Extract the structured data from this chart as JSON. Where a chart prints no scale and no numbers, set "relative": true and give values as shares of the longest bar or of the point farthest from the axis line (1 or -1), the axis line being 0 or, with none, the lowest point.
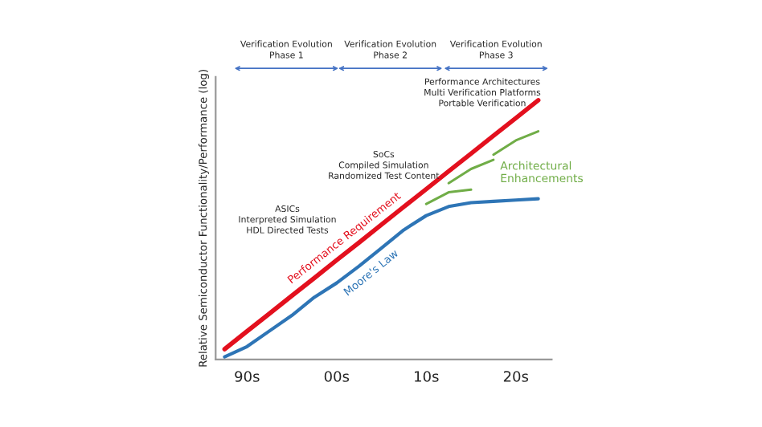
{
  "chart_data": {
    "type": "line",
    "relative": true,
    "ylabel": "Relative Semiconductor Functionality/Performance (log)",
    "categories": [
      null,
      "90s",
      null,
      null,
      null,
      "00s",
      null,
      null,
      null,
      "10s",
      null,
      null,
      null,
      "20s",
      null
    ],
    "tick_labels": "x",
    "grid": false,
    "series": [
      {
        "name": "Performance Requirement",
        "color": "#e3101e",
        "values": [
          0.04,
          0.109,
          0.177,
          0.246,
          0.314,
          0.383,
          0.451,
          0.52,
          0.589,
          0.657,
          0.726,
          0.794,
          0.863,
          0.931,
          1.0
        ]
      },
      {
        "name": "Moore's Law",
        "color": "#2e75b6",
        "values": [
          0.01,
          0.05,
          0.11,
          0.17,
          0.24,
          0.295,
          0.36,
          0.43,
          0.5,
          0.555,
          0.59,
          0.605,
          0.61,
          0.615,
          0.62
        ]
      },
      {
        "name": "Architectural Enhancements",
        "color": "#70ad47",
        "values": [
          null,
          null,
          null,
          null,
          null,
          null,
          null,
          null,
          null,
          0.6,
          0.645,
          0.655,
          null,
          null,
          null
        ]
      },
      {
        "color": "#70ad47",
        "values": [
          null,
          null,
          null,
          null,
          null,
          null,
          null,
          null,
          null,
          null,
          0.68,
          0.735,
          0.77,
          null,
          null
        ]
      },
      {
        "color": "#70ad47",
        "values": [
          null,
          null,
          null,
          null,
          null,
          null,
          null,
          null,
          null,
          null,
          null,
          null,
          0.79,
          0.845,
          0.88
        ]
      }
    ],
    "annotations": [
      "Verification Evolution\nPhase 1",
      "Verification Evolution\nPhase 2",
      "Verification Evolution\nPhase 3",
      "ASICs\nInterpreted Simulation\nHDL Directed Tests",
      "SoCs\nCompiled Simulation\nRandomized Test Content",
      "Performance Architectures\nMulti Verification Platforms\nPortable Verification"
    ]
  }
}
